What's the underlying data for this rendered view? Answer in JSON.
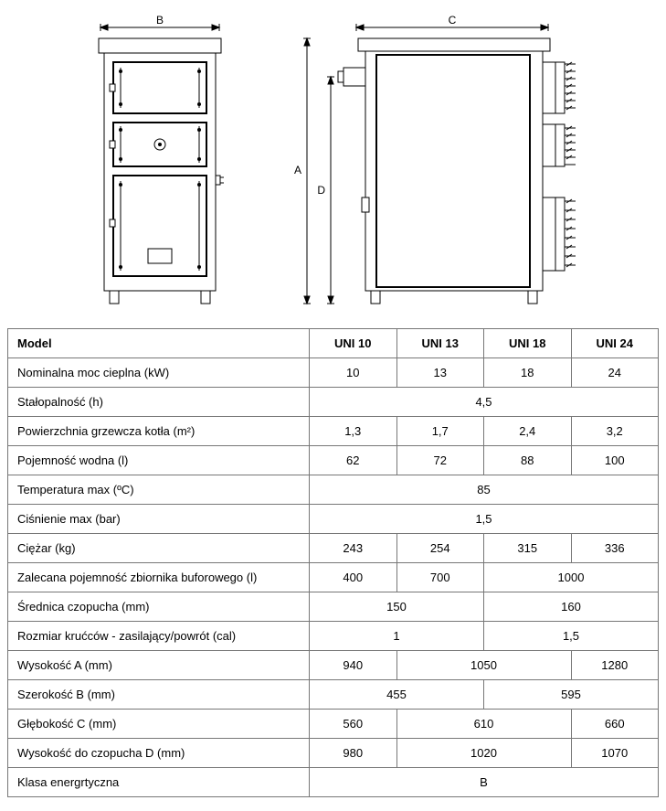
{
  "diagram": {
    "label_B": "B",
    "label_C": "C",
    "label_A": "A",
    "label_D": "D",
    "stroke": "#000000",
    "fill": "#ffffff"
  },
  "table": {
    "header": [
      "Model",
      "UNI 10",
      "UNI 13",
      "UNI 18",
      "UNI 24"
    ],
    "rows": [
      {
        "label": "Nominalna moc cieplna (kW)",
        "cells": [
          {
            "v": "10",
            "span": 1
          },
          {
            "v": "13",
            "span": 1
          },
          {
            "v": "18",
            "span": 1
          },
          {
            "v": "24",
            "span": 1
          }
        ]
      },
      {
        "label": "Stałopalność (h)",
        "cells": [
          {
            "v": "4,5",
            "span": 4
          }
        ]
      },
      {
        "label": "Powierzchnia grzewcza kotła (m²)",
        "cells": [
          {
            "v": "1,3",
            "span": 1
          },
          {
            "v": "1,7",
            "span": 1
          },
          {
            "v": "2,4",
            "span": 1
          },
          {
            "v": "3,2",
            "span": 1
          }
        ]
      },
      {
        "label": "Pojemność wodna (l)",
        "cells": [
          {
            "v": "62",
            "span": 1
          },
          {
            "v": "72",
            "span": 1
          },
          {
            "v": "88",
            "span": 1
          },
          {
            "v": "100",
            "span": 1
          }
        ]
      },
      {
        "label": "Temperatura max (ºC)",
        "cells": [
          {
            "v": "85",
            "span": 4
          }
        ]
      },
      {
        "label": "Ciśnienie max (bar)",
        "cells": [
          {
            "v": "1,5",
            "span": 4
          }
        ]
      },
      {
        "label": "Ciężar (kg)",
        "cells": [
          {
            "v": "243",
            "span": 1
          },
          {
            "v": "254",
            "span": 1
          },
          {
            "v": "315",
            "span": 1
          },
          {
            "v": "336",
            "span": 1
          }
        ]
      },
      {
        "label": "Zalecana pojemność zbiornika buforowego (l)",
        "cells": [
          {
            "v": "400",
            "span": 1
          },
          {
            "v": "700",
            "span": 1
          },
          {
            "v": "1000",
            "span": 2
          }
        ]
      },
      {
        "label": "Średnica czopucha (mm)",
        "cells": [
          {
            "v": "150",
            "span": 2
          },
          {
            "v": "160",
            "span": 2
          }
        ]
      },
      {
        "label": "Rozmiar krućców - zasilający/powrót (cal)",
        "cells": [
          {
            "v": "1",
            "span": 2
          },
          {
            "v": "1,5",
            "span": 2
          }
        ]
      },
      {
        "label": "Wysokość A (mm)",
        "cells": [
          {
            "v": "940",
            "span": 1
          },
          {
            "v": "1050",
            "span": 2
          },
          {
            "v": "1280",
            "span": 1
          }
        ]
      },
      {
        "label": "Szerokość B (mm)",
        "cells": [
          {
            "v": "455",
            "span": 2
          },
          {
            "v": "595",
            "span": 2
          }
        ]
      },
      {
        "label": "Głębokość C (mm)",
        "cells": [
          {
            "v": "560",
            "span": 1
          },
          {
            "v": "610",
            "span": 2
          },
          {
            "v": "660",
            "span": 1
          }
        ]
      },
      {
        "label": "Wysokość do czopucha D (mm)",
        "cells": [
          {
            "v": "980",
            "span": 1
          },
          {
            "v": "1020",
            "span": 2
          },
          {
            "v": "1070",
            "span": 1
          }
        ]
      },
      {
        "label": "Klasa energrtyczna",
        "cells": [
          {
            "v": "B",
            "span": 4
          }
        ]
      }
    ]
  }
}
